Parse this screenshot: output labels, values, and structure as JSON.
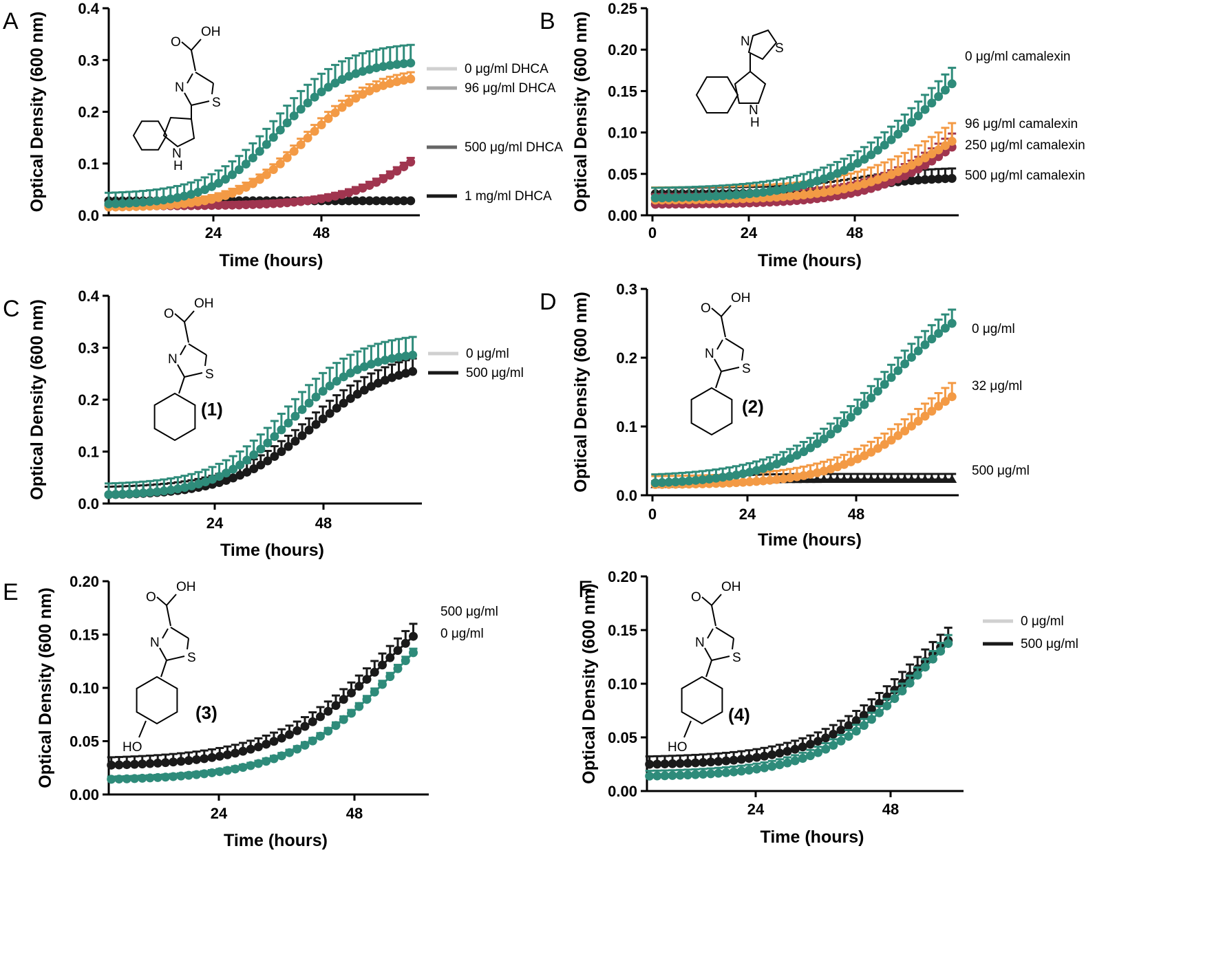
{
  "colors": {
    "teal": "#2e8b7a",
    "orange": "#f39a45",
    "maroon": "#a0354f",
    "black": "#1a1a1a",
    "legend_light": "#d0d0d0",
    "legend_mid": "#a6a6a6",
    "legend_dark": "#666666",
    "legend_black": "#1a1a1a"
  },
  "chart_data": [
    {
      "panel": "A",
      "type": "line",
      "xlabel": "Time (hours)",
      "ylabel": "Optical Density (600 nm)",
      "xlim": [
        0,
        68
      ],
      "ylim": [
        0,
        0.4
      ],
      "xticks": [
        "24",
        "48"
      ],
      "yticks": [
        "0.0",
        "0.1",
        "0.2",
        "0.3",
        "0.4"
      ],
      "legend_style": "lines",
      "legend": [
        {
          "label": "0 μg/ml DHCA",
          "color": "legend_light"
        },
        {
          "label": "96 μg/ml DHCA",
          "color": "legend_mid"
        },
        {
          "label": "500 μg/ml DHCA",
          "color": "legend_dark"
        },
        {
          "label": "1 mg/ml DHCA",
          "color": "legend_black"
        }
      ],
      "molecule": "dhca",
      "series": [
        {
          "name": "0 μg/ml DHCA",
          "color": "teal",
          "x0": 0,
          "dx": 1.5,
          "n": 45,
          "curve": [
            0.02,
            0.28,
            37,
            7.5
          ],
          "err": 0.035
        },
        {
          "name": "96 μg/ml DHCA",
          "color": "orange",
          "x0": 0,
          "dx": 1.5,
          "n": 45,
          "curve": [
            0.015,
            0.26,
            43,
            7.5
          ],
          "err": 0.013
        },
        {
          "name": "500 μg/ml DHCA",
          "color": "maroon",
          "x0": 0,
          "dx": 1.5,
          "n": 45,
          "curve": [
            0.018,
            0.25,
            72,
            9
          ],
          "err": 0.01
        },
        {
          "name": "1 mg/ml DHCA",
          "color": "black",
          "x0": 0,
          "dx": 1.5,
          "n": 45,
          "curve": [
            0.028,
            0,
            50,
            10
          ],
          "err": 0
        }
      ]
    },
    {
      "panel": "B",
      "type": "line",
      "xlabel": "Time (hours)",
      "ylabel": "Optical Density (600 nm)",
      "xlim": [
        -2,
        72
      ],
      "ylim": [
        0,
        0.25
      ],
      "xticks": [
        "0",
        "24",
        "48"
      ],
      "yticks": [
        "0.00",
        "0.05",
        "0.10",
        "0.15",
        "0.20",
        "0.25"
      ],
      "legend_style": "end",
      "legend": [
        {
          "label": "0 μg/ml camalexin"
        },
        {
          "label": "96 μg/ml camalexin"
        },
        {
          "label": "250 μg/ml camalexin"
        },
        {
          "label": "500 μg/ml camalexin"
        }
      ],
      "molecule": "camalexin",
      "series": [
        {
          "name": "0 μg/ml camalexin",
          "color": "teal",
          "x0": 0,
          "dx": 1.6,
          "n": 45,
          "curve": [
            0.02,
            0.235,
            66,
            12
          ],
          "err": 0.02
        },
        {
          "name": "96 μg/ml camalexin",
          "color": "orange",
          "x0": 0,
          "dx": 1.6,
          "n": 45,
          "curve": [
            0.018,
            0.16,
            73,
            12
          ],
          "err": 0.025
        },
        {
          "name": "250 μg/ml camalexin",
          "color": "maroon",
          "x0": 0,
          "dx": 1.6,
          "n": 45,
          "curve": [
            0.013,
            0.2,
            78,
            12
          ],
          "err": 0.02
        },
        {
          "name": "500 μg/ml camalexin",
          "color": "black",
          "x0": 0,
          "dx": 1.6,
          "n": 45,
          "curve": [
            0.026,
            0.02,
            50,
            8
          ],
          "err": 0.012
        }
      ]
    },
    {
      "panel": "C",
      "type": "line",
      "xlabel": "Time (hours)",
      "ylabel": "Optical Density (600 nm)",
      "xlim": [
        0,
        68
      ],
      "ylim": [
        0,
        0.4
      ],
      "xticks": [
        "24",
        "48"
      ],
      "yticks": [
        "0.0",
        "0.1",
        "0.2",
        "0.3",
        "0.4"
      ],
      "legend_style": "lines",
      "legend": [
        {
          "label": "0 μg/ml",
          "color": "legend_light"
        },
        {
          "label": "500 μg/ml",
          "color": "legend_black"
        }
      ],
      "molecule": "phenyl",
      "compound_label": "(1)",
      "series": [
        {
          "name": "0 μg/ml",
          "color": "teal",
          "x0": 0,
          "dx": 1.5,
          "n": 45,
          "curve": [
            0.015,
            0.28,
            39,
            8
          ],
          "err": 0.035
        },
        {
          "name": "500 μg/ml",
          "color": "black",
          "x0": 0,
          "dx": 1.5,
          "n": 45,
          "curve": [
            0.015,
            0.26,
            44,
            9
          ],
          "err": 0.025
        }
      ]
    },
    {
      "panel": "D",
      "type": "line",
      "xlabel": "Time (hours)",
      "ylabel": "Optical Density (600 nm)",
      "xlim": [
        -2,
        72
      ],
      "ylim": [
        0,
        0.3
      ],
      "xticks": [
        "0",
        "24",
        "48"
      ],
      "yticks": [
        "0.0",
        "0.1",
        "0.2",
        "0.3"
      ],
      "legend_style": "end",
      "legend": [
        {
          "label": "0 μg/ml"
        },
        {
          "label": "32 μg/ml"
        },
        {
          "label": "500 μg/ml"
        }
      ],
      "molecule": "phenyl-dash",
      "compound_label": "(2)",
      "series": [
        {
          "name": "0 μg/ml",
          "color": "teal",
          "x0": 0,
          "dx": 1.6,
          "n": 45,
          "curve": [
            0.015,
            0.3,
            55,
            12
          ],
          "err": 0.02
        },
        {
          "name": "32 μg/ml",
          "color": "orange",
          "x0": 0,
          "dx": 1.6,
          "n": 45,
          "curve": [
            0.015,
            0.2,
            64,
            11
          ],
          "err": 0.02
        },
        {
          "name": "500 μg/ml",
          "color": "black",
          "x0": 0,
          "dx": 1.6,
          "n": 45,
          "curve": [
            0.015,
            0.008,
            15,
            5
          ],
          "err": 0.008,
          "marker": "triangle"
        }
      ]
    },
    {
      "panel": "E",
      "type": "line",
      "xlabel": "Time (hours)",
      "ylabel": "Optical Density (600 nm)",
      "xlim": [
        6,
        68
      ],
      "ylim": [
        0,
        0.2
      ],
      "xticks": [
        "24",
        "48"
      ],
      "yticks": [
        "0.00",
        "0.05",
        "0.10",
        "0.15",
        "0.20"
      ],
      "legend_style": "end",
      "legend": [
        {
          "label": "500 μg/ml"
        },
        {
          "label": "0 μg/ml"
        }
      ],
      "molecule": "hydroxyphenyl",
      "compound_label": "(3)",
      "series": [
        {
          "name": "500 μg/ml",
          "color": "black",
          "x0": 6.5,
          "dx": 1.5,
          "n": 40,
          "curve": [
            0.026,
            0.2,
            60,
            11
          ],
          "err": 0.012
        },
        {
          "name": "0 μg/ml",
          "color": "teal",
          "x0": 6.5,
          "dx": 1.5,
          "n": 40,
          "curve": [
            0.013,
            0.22,
            63,
            11
          ],
          "err": 0.004
        }
      ]
    },
    {
      "panel": "F",
      "type": "line",
      "xlabel": "Time (hours)",
      "ylabel": "Optical Density (600 nm)",
      "xlim": [
        6,
        68
      ],
      "ylim": [
        0,
        0.2
      ],
      "xticks": [
        "24",
        "48"
      ],
      "yticks": [
        "0.00",
        "0.05",
        "0.10",
        "0.15",
        "0.20"
      ],
      "legend_style": "lines",
      "legend": [
        {
          "label": "0 μg/ml",
          "color": "legend_light"
        },
        {
          "label": "500 μg/ml",
          "color": "legend_black"
        }
      ],
      "molecule": "hydroxyphenyl-dash",
      "compound_label": "(4)",
      "series": [
        {
          "name": "0 μg/ml",
          "color": "teal",
          "x0": 6.5,
          "dx": 1.5,
          "n": 40,
          "curve": [
            0.013,
            0.2,
            60,
            10
          ],
          "err": 0.008
        },
        {
          "name": "500 μg/ml",
          "color": "black",
          "x0": 6.5,
          "dx": 1.5,
          "n": 40,
          "curve": [
            0.024,
            0.18,
            59,
            10
          ],
          "err": 0.012
        }
      ]
    }
  ],
  "molecule_text": {
    "o": "O",
    "oh": "OH",
    "n": "N",
    "s": "S",
    "h": "H",
    "ho": "HO"
  }
}
